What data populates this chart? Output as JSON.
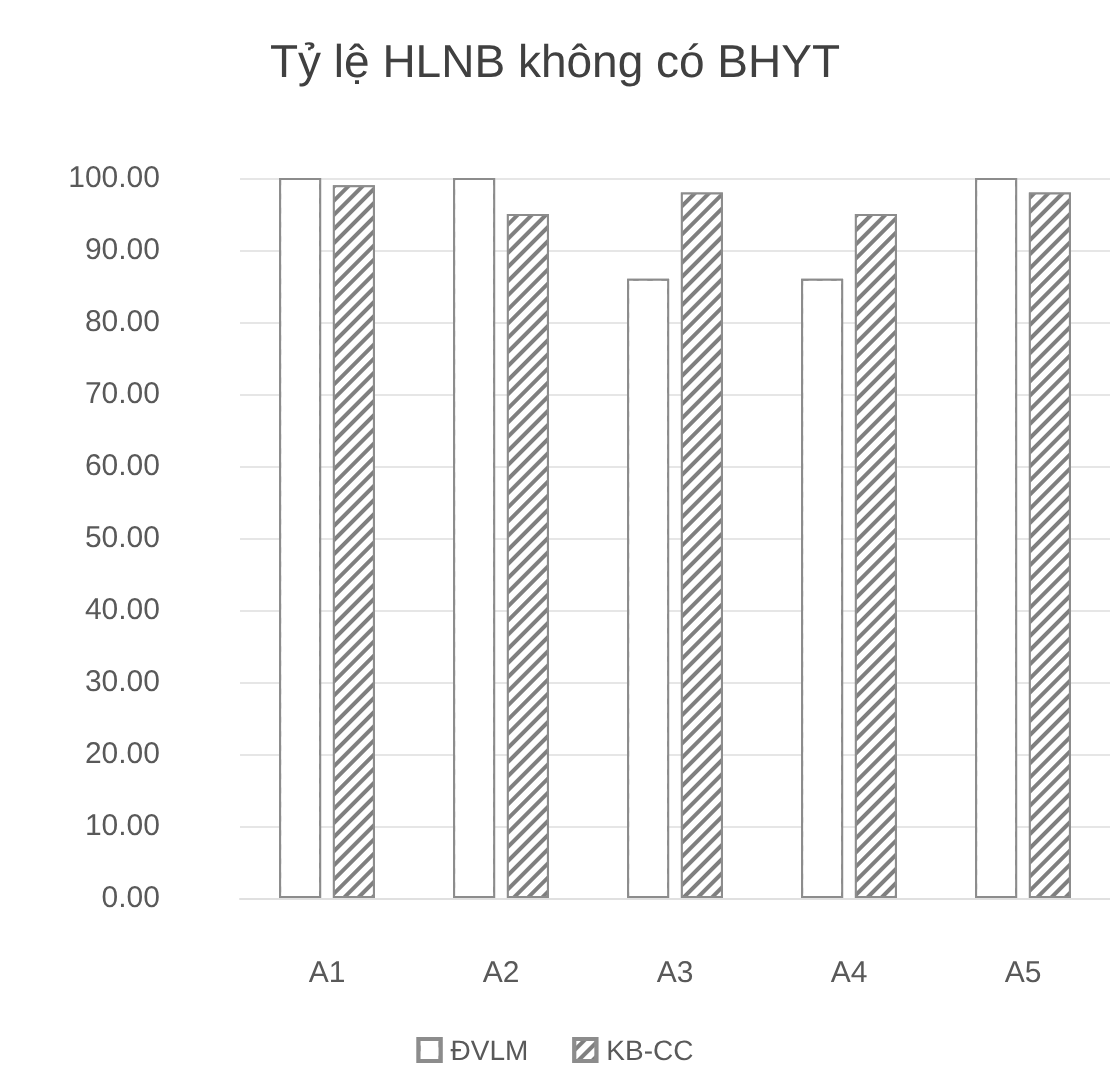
{
  "chart_data": {
    "type": "bar",
    "title": "Tỷ lệ HLNB không có BHYT",
    "categories": [
      "A1",
      "A2",
      "A3",
      "A4",
      "A5"
    ],
    "series": [
      {
        "name": "ĐVLM",
        "color": "#ffffff",
        "values": [
          100,
          100,
          86,
          86,
          100
        ]
      },
      {
        "name": "KB-CC",
        "color": "#7f7f7f",
        "values": [
          99,
          95,
          98,
          95,
          98
        ]
      }
    ],
    "ylim": [
      0,
      100
    ],
    "yticks": [
      {
        "value": 0,
        "label": "0.00"
      },
      {
        "value": 10,
        "label": "10.00"
      },
      {
        "value": 20,
        "label": "20.00"
      },
      {
        "value": 30,
        "label": "30.00"
      },
      {
        "value": 40,
        "label": "40.00"
      },
      {
        "value": 50,
        "label": "50.00"
      },
      {
        "value": 60,
        "label": "60.00"
      },
      {
        "value": 70,
        "label": "70.00"
      },
      {
        "value": 80,
        "label": "80.00"
      },
      {
        "value": 90,
        "label": "90.00"
      },
      {
        "value": 100,
        "label": "100.00"
      }
    ],
    "grid": "y",
    "legend": "bottom"
  }
}
